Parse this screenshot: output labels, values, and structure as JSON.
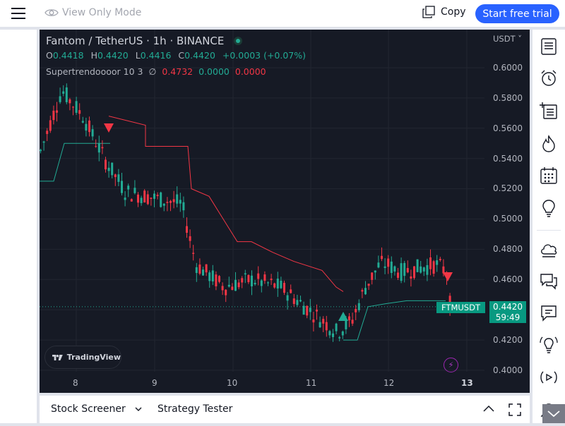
{
  "topbar": {
    "view_only_label": "View Only Mode",
    "copy_label": "Copy",
    "trial_label": "Start free trial"
  },
  "chart": {
    "symbol_title": "Fantom / TetherUS · 1h · BINANCE",
    "ohlc": {
      "o_key": "O",
      "o": "0.4418",
      "h_key": "H",
      "h": "0.4420",
      "l_key": "L",
      "l": "0.4416",
      "c_key": "C",
      "c": "0.4420",
      "change": "+0.0003 (+0.07%)"
    },
    "indicator": {
      "name": "Supertrendoooor 10 3",
      "symbol": "∅",
      "v1": "0.4732",
      "v2": "0.0000",
      "v3": "0.0000"
    },
    "currency": "USDT",
    "price_axis": [
      "0.6000",
      "0.5800",
      "0.5600",
      "0.5400",
      "0.5200",
      "0.5000",
      "0.4800",
      "0.4600",
      "0.4420",
      "0.4200",
      "0.4000"
    ],
    "time_axis": [
      "8",
      "9",
      "10",
      "11",
      "12",
      "13"
    ],
    "last_price": "0.4420",
    "countdown": "59:49",
    "symbol_tag": "FTMUSDT",
    "logo_text": "TradingView",
    "colors": {
      "up": "#22ab94",
      "down": "#f23645",
      "bg": "#161a25",
      "accent": "#2962ff"
    }
  },
  "bottombar": {
    "stock_screener": "Stock Screener",
    "strategy_tester": "Strategy Tester"
  }
}
